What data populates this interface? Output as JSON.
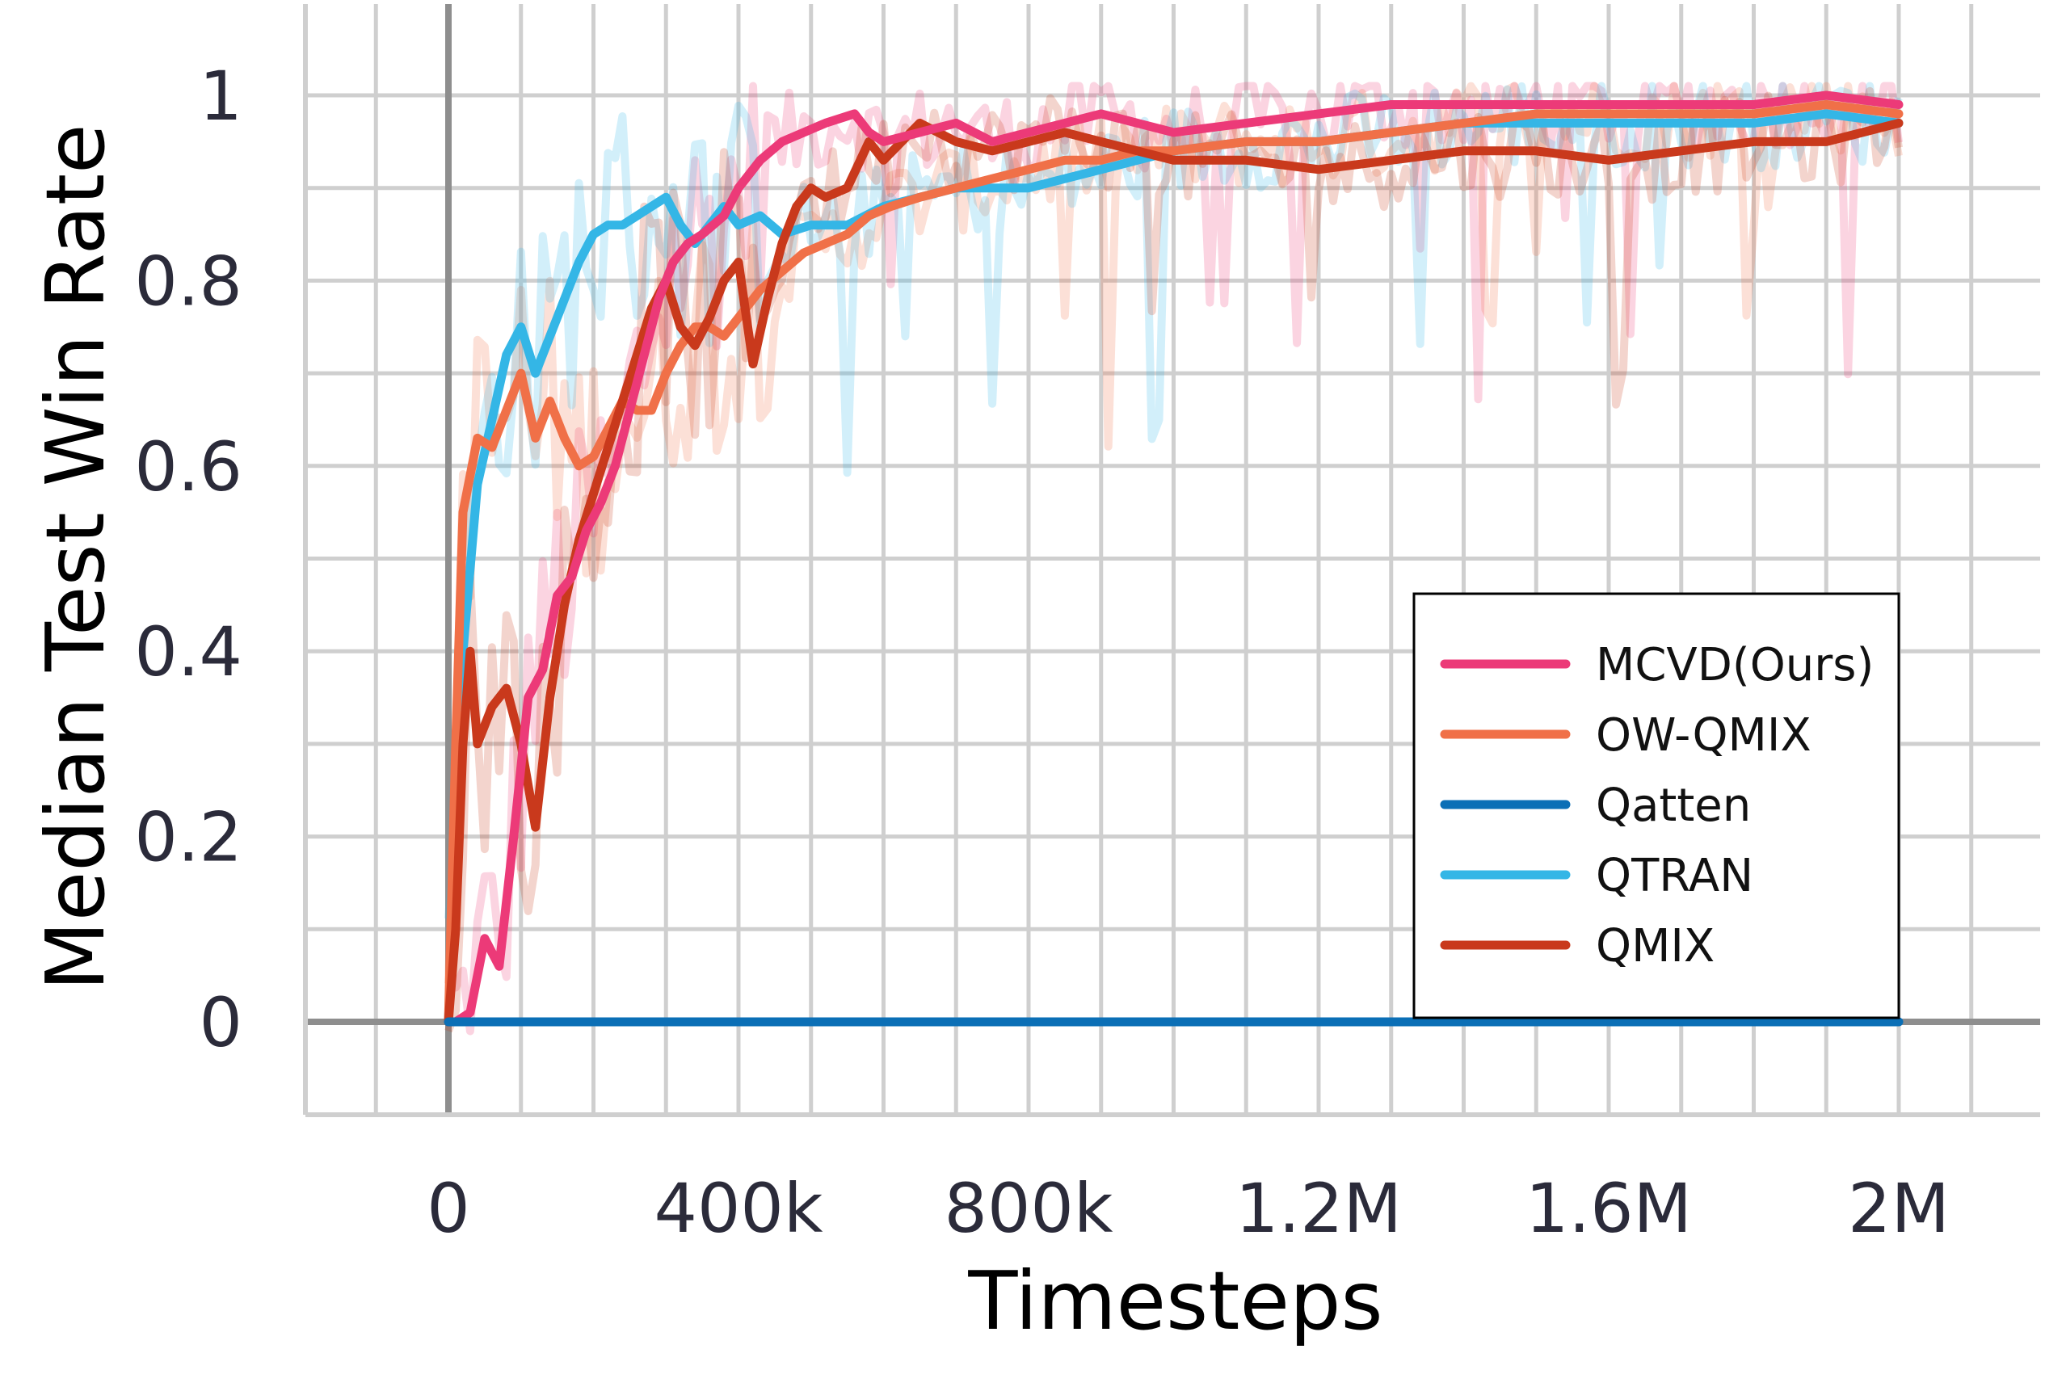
{
  "chart_data": {
    "type": "line",
    "title": "",
    "xlabel": "Timesteps",
    "ylabel": "Median Test Win Rate",
    "xlim": [
      -200000,
      2200000
    ],
    "ylim": [
      -0.1,
      1.1
    ],
    "grid": true,
    "legend_position": "bottom-right",
    "x_ticks": [
      0,
      400000,
      800000,
      1200000,
      1600000,
      2000000
    ],
    "x_tick_labels": [
      "0",
      "400k",
      "800k",
      "1.2M",
      "1.6M",
      "2M"
    ],
    "y_ticks": [
      0,
      0.2,
      0.4,
      0.6,
      0.8,
      1
    ],
    "y_tick_labels": [
      "0",
      "0.2",
      "0.4",
      "0.6",
      "0.8",
      "1"
    ],
    "series": [
      {
        "name": "MCVD(Ours)",
        "color": "#ec3a78",
        "x": [
          10000,
          30000,
          50000,
          70000,
          90000,
          110000,
          130000,
          150000,
          170000,
          190000,
          210000,
          230000,
          250000,
          270000,
          290000,
          310000,
          330000,
          350000,
          380000,
          400000,
          430000,
          460000,
          490000,
          520000,
          560000,
          580000,
          600000,
          650000,
          700000,
          750000,
          800000,
          850000,
          900000,
          950000,
          1000000,
          1100000,
          1200000,
          1300000,
          1400000,
          1500000,
          1600000,
          1700000,
          1800000,
          1900000,
          2000000
        ],
        "y": [
          0,
          0.01,
          0.09,
          0.06,
          0.2,
          0.35,
          0.38,
          0.46,
          0.48,
          0.53,
          0.56,
          0.6,
          0.66,
          0.72,
          0.78,
          0.82,
          0.84,
          0.85,
          0.87,
          0.9,
          0.93,
          0.95,
          0.96,
          0.97,
          0.98,
          0.96,
          0.95,
          0.96,
          0.97,
          0.95,
          0.96,
          0.97,
          0.98,
          0.97,
          0.96,
          0.97,
          0.98,
          0.99,
          0.99,
          0.99,
          0.99,
          0.99,
          0.99,
          1.0,
          0.99
        ]
      },
      {
        "name": "OW-QMIX",
        "color": "#f07048",
        "x": [
          0,
          10000,
          20000,
          40000,
          60000,
          80000,
          100000,
          120000,
          140000,
          160000,
          180000,
          200000,
          220000,
          240000,
          260000,
          280000,
          300000,
          320000,
          340000,
          360000,
          380000,
          400000,
          430000,
          460000,
          490000,
          520000,
          550000,
          580000,
          610000,
          650000,
          700000,
          750000,
          800000,
          850000,
          900000,
          950000,
          1000000,
          1100000,
          1200000,
          1300000,
          1400000,
          1500000,
          1600000,
          1700000,
          1800000,
          1900000,
          2000000
        ],
        "y": [
          0,
          0.3,
          0.55,
          0.63,
          0.62,
          0.66,
          0.7,
          0.63,
          0.67,
          0.63,
          0.6,
          0.61,
          0.64,
          0.67,
          0.66,
          0.66,
          0.7,
          0.73,
          0.75,
          0.75,
          0.74,
          0.76,
          0.79,
          0.81,
          0.83,
          0.84,
          0.85,
          0.87,
          0.88,
          0.89,
          0.9,
          0.91,
          0.92,
          0.93,
          0.93,
          0.94,
          0.94,
          0.95,
          0.95,
          0.96,
          0.97,
          0.98,
          0.98,
          0.98,
          0.98,
          0.99,
          0.98
        ]
      },
      {
        "name": "Qatten",
        "color": "#0b6fb6",
        "x": [
          0,
          2000000
        ],
        "y": [
          0,
          0
        ]
      },
      {
        "name": "QTRAN",
        "color": "#34b6e6",
        "x": [
          0,
          20000,
          40000,
          60000,
          80000,
          100000,
          120000,
          140000,
          160000,
          180000,
          200000,
          220000,
          240000,
          260000,
          280000,
          300000,
          320000,
          340000,
          360000,
          380000,
          400000,
          430000,
          460000,
          500000,
          550000,
          600000,
          650000,
          700000,
          750000,
          800000,
          850000,
          900000,
          950000,
          1000000,
          1100000,
          1200000,
          1300000,
          1400000,
          1500000,
          1600000,
          1700000,
          1800000,
          1900000,
          2000000
        ],
        "y": [
          0,
          0.4,
          0.58,
          0.65,
          0.72,
          0.75,
          0.7,
          0.74,
          0.78,
          0.82,
          0.85,
          0.86,
          0.86,
          0.87,
          0.88,
          0.89,
          0.86,
          0.84,
          0.86,
          0.88,
          0.86,
          0.87,
          0.85,
          0.86,
          0.86,
          0.88,
          0.89,
          0.9,
          0.9,
          0.9,
          0.91,
          0.92,
          0.93,
          0.94,
          0.95,
          0.95,
          0.96,
          0.97,
          0.97,
          0.97,
          0.97,
          0.97,
          0.98,
          0.97
        ]
      },
      {
        "name": "QMIX",
        "color": "#c9391c",
        "x": [
          0,
          10000,
          20000,
          30000,
          40000,
          60000,
          80000,
          100000,
          120000,
          140000,
          160000,
          180000,
          200000,
          220000,
          240000,
          260000,
          280000,
          300000,
          320000,
          340000,
          360000,
          380000,
          400000,
          420000,
          440000,
          460000,
          480000,
          500000,
          520000,
          550000,
          580000,
          600000,
          650000,
          700000,
          750000,
          800000,
          850000,
          900000,
          950000,
          1000000,
          1100000,
          1200000,
          1300000,
          1400000,
          1500000,
          1600000,
          1700000,
          1800000,
          1900000,
          2000000
        ],
        "y": [
          0,
          0.1,
          0.3,
          0.4,
          0.3,
          0.34,
          0.36,
          0.3,
          0.21,
          0.35,
          0.45,
          0.52,
          0.57,
          0.62,
          0.67,
          0.72,
          0.77,
          0.8,
          0.75,
          0.73,
          0.76,
          0.8,
          0.82,
          0.71,
          0.78,
          0.84,
          0.88,
          0.9,
          0.89,
          0.9,
          0.95,
          0.93,
          0.97,
          0.95,
          0.94,
          0.95,
          0.96,
          0.95,
          0.94,
          0.93,
          0.93,
          0.92,
          0.93,
          0.94,
          0.94,
          0.93,
          0.94,
          0.95,
          0.95,
          0.97
        ]
      }
    ]
  }
}
